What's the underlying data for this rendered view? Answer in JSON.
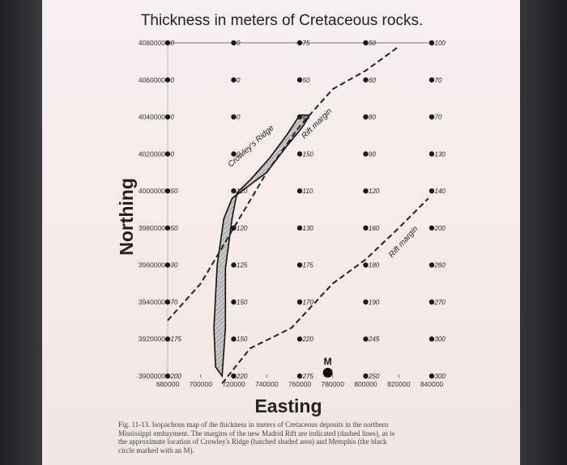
{
  "chart_data": {
    "type": "scatter",
    "title": "Thickness in meters of Cretaceous rocks.",
    "xlabel": "Easting",
    "ylabel": "Northing",
    "xlim": [
      680000,
      840000
    ],
    "ylim": [
      3900000,
      4080000
    ],
    "x_ticks": [
      "680000",
      "700000",
      "720000",
      "740000",
      "760000",
      "780000",
      "800000",
      "820000",
      "840000"
    ],
    "y_ticks": [
      "4080000",
      "4060000",
      "4040000",
      "4020000",
      "4000000",
      "3980000",
      "3960000",
      "3940000",
      "3920000",
      "3900000"
    ],
    "points": [
      {
        "x": 680000,
        "y": 4080000,
        "v": "0"
      },
      {
        "x": 720000,
        "y": 4080000,
        "v": "0"
      },
      {
        "x": 760000,
        "y": 4080000,
        "v": "75"
      },
      {
        "x": 800000,
        "y": 4080000,
        "v": "50"
      },
      {
        "x": 840000,
        "y": 4080000,
        "v": "100"
      },
      {
        "x": 680000,
        "y": 4060000,
        "v": "0"
      },
      {
        "x": 720000,
        "y": 4060000,
        "v": "0"
      },
      {
        "x": 760000,
        "y": 4060000,
        "v": "50"
      },
      {
        "x": 800000,
        "y": 4060000,
        "v": "60"
      },
      {
        "x": 840000,
        "y": 4060000,
        "v": "70"
      },
      {
        "x": 680000,
        "y": 4040000,
        "v": "0"
      },
      {
        "x": 720000,
        "y": 4040000,
        "v": "0"
      },
      {
        "x": 760000,
        "y": 4040000,
        "v": "85"
      },
      {
        "x": 800000,
        "y": 4040000,
        "v": "80"
      },
      {
        "x": 840000,
        "y": 4040000,
        "v": "70"
      },
      {
        "x": 680000,
        "y": 4020000,
        "v": "0"
      },
      {
        "x": 720000,
        "y": 4020000,
        "v": "0"
      },
      {
        "x": 760000,
        "y": 4020000,
        "v": "150"
      },
      {
        "x": 800000,
        "y": 4020000,
        "v": "90"
      },
      {
        "x": 840000,
        "y": 4020000,
        "v": "130"
      },
      {
        "x": 680000,
        "y": 4000000,
        "v": "50"
      },
      {
        "x": 720000,
        "y": 4000000,
        "v": "120"
      },
      {
        "x": 760000,
        "y": 4000000,
        "v": "110"
      },
      {
        "x": 800000,
        "y": 4000000,
        "v": "120"
      },
      {
        "x": 840000,
        "y": 4000000,
        "v": "140"
      },
      {
        "x": 680000,
        "y": 3980000,
        "v": "50"
      },
      {
        "x": 720000,
        "y": 3980000,
        "v": "120"
      },
      {
        "x": 760000,
        "y": 3980000,
        "v": "130"
      },
      {
        "x": 800000,
        "y": 3980000,
        "v": "160"
      },
      {
        "x": 840000,
        "y": 3980000,
        "v": "200"
      },
      {
        "x": 680000,
        "y": 3960000,
        "v": "30"
      },
      {
        "x": 720000,
        "y": 3960000,
        "v": "125"
      },
      {
        "x": 760000,
        "y": 3960000,
        "v": "175"
      },
      {
        "x": 800000,
        "y": 3960000,
        "v": "180"
      },
      {
        "x": 840000,
        "y": 3960000,
        "v": "260"
      },
      {
        "x": 680000,
        "y": 3940000,
        "v": "70"
      },
      {
        "x": 720000,
        "y": 3940000,
        "v": "150"
      },
      {
        "x": 760000,
        "y": 3940000,
        "v": "170"
      },
      {
        "x": 800000,
        "y": 3940000,
        "v": "190"
      },
      {
        "x": 840000,
        "y": 3940000,
        "v": "270"
      },
      {
        "x": 680000,
        "y": 3920000,
        "v": "175"
      },
      {
        "x": 720000,
        "y": 3920000,
        "v": "150"
      },
      {
        "x": 760000,
        "y": 3920000,
        "v": "220"
      },
      {
        "x": 800000,
        "y": 3920000,
        "v": "245"
      },
      {
        "x": 840000,
        "y": 3920000,
        "v": "300"
      },
      {
        "x": 680000,
        "y": 3900000,
        "v": "200"
      },
      {
        "x": 720000,
        "y": 3900000,
        "v": "220"
      },
      {
        "x": 760000,
        "y": 3900000,
        "v": "275"
      },
      {
        "x": 800000,
        "y": 3900000,
        "v": "250"
      },
      {
        "x": 840000,
        "y": 3900000,
        "v": "300"
      }
    ],
    "annotations": {
      "crowleys_ridge": "Crowley's Ridge",
      "rift_margin_north": "Rift margin",
      "rift_margin_south": "Rift margin",
      "memphis": "M"
    },
    "memphis_location": {
      "x": 777000,
      "y": 3900500
    },
    "rift_margin_north_path": [
      [
        680000,
        3930000
      ],
      [
        700000,
        3950000
      ],
      [
        720000,
        3980000
      ],
      [
        740000,
        4010000
      ],
      [
        760000,
        4035000
      ],
      [
        780000,
        4055000
      ],
      [
        800000,
        4065000
      ],
      [
        820000,
        4078000
      ]
    ],
    "rift_margin_south_path": [
      [
        713000,
        3896000
      ],
      [
        730000,
        3915000
      ],
      [
        755000,
        3926000
      ],
      [
        780000,
        3950000
      ],
      [
        800000,
        3963000
      ],
      [
        820000,
        3980000
      ],
      [
        838000,
        3996000
      ]
    ],
    "crowleys_ridge_polygon": [
      [
        713000,
        3900000
      ],
      [
        715000,
        3926000
      ],
      [
        715000,
        3958000
      ],
      [
        719000,
        3985000
      ],
      [
        722000,
        3999000
      ],
      [
        730000,
        4006000
      ],
      [
        742000,
        4018000
      ],
      [
        752000,
        4030000
      ],
      [
        760000,
        4041000
      ],
      [
        766000,
        4041000
      ],
      [
        762000,
        4035000
      ],
      [
        752000,
        4024000
      ],
      [
        740000,
        4010000
      ],
      [
        728000,
        4002000
      ],
      [
        719000,
        3996000
      ],
      [
        714000,
        3985000
      ],
      [
        710000,
        3960000
      ],
      [
        708000,
        3926000
      ],
      [
        709000,
        3905000
      ]
    ],
    "colors": {
      "points": "#1a1a1a",
      "rift": "#222222",
      "ridge_fill": "#bdbdbd"
    }
  },
  "caption": {
    "line1": "Fig. 11-13.  Isopachous map of the thickness in meters of Cretaceous deposits in the northern",
    "line2": "Mississippi embayment. The margins of the new Madrid Rift are indicated (dashed lines), as is",
    "line3": "the approximate location of Crowley's Ridge (hatched shaded area) and Memphis (the black",
    "line4": "circle marked with an M)."
  }
}
